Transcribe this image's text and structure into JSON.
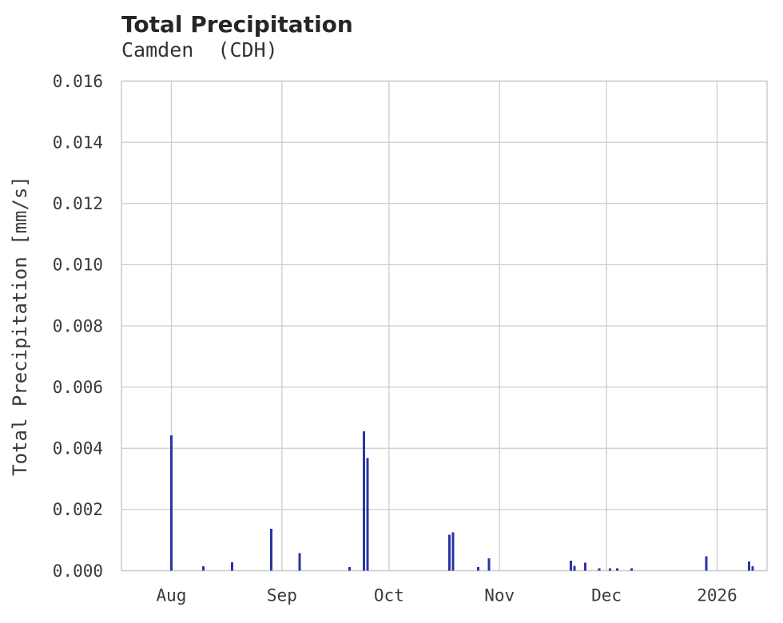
{
  "chart": {
    "title": "Total Precipitation",
    "subtitle": "Camden  (CDH)",
    "ylabel": "Total Precipitation [mm/s]"
  },
  "chart_data": {
    "type": "bar",
    "title": "Total Precipitation",
    "subtitle": "Camden  (CDH)",
    "xlabel": "",
    "ylabel": "Total Precipitation [mm/s]",
    "ylim": [
      0,
      0.016
    ],
    "ytick_step": 0.002,
    "ytick_labels": [
      "0.000",
      "0.002",
      "0.004",
      "0.006",
      "0.008",
      "0.010",
      "0.012",
      "0.014",
      "0.016"
    ],
    "grid": true,
    "legend_position": "none",
    "x_domain": [
      "2025-07-18",
      "2026-01-15"
    ],
    "x_ticks": [
      {
        "date": "2025-08-01",
        "label": "Aug"
      },
      {
        "date": "2025-09-01",
        "label": "Sep"
      },
      {
        "date": "2025-10-01",
        "label": "Oct"
      },
      {
        "date": "2025-11-01",
        "label": "Nov"
      },
      {
        "date": "2025-12-01",
        "label": "Dec"
      },
      {
        "date": "2026-01-01",
        "label": "2026"
      }
    ],
    "points": [
      {
        "date": "2025-08-01",
        "value": 0.00443
      },
      {
        "date": "2025-08-10",
        "value": 0.00014
      },
      {
        "date": "2025-08-18",
        "value": 0.00027
      },
      {
        "date": "2025-08-29",
        "value": 0.00137
      },
      {
        "date": "2025-09-06",
        "value": 0.00058
      },
      {
        "date": "2025-09-20",
        "value": 0.00012
      },
      {
        "date": "2025-09-24",
        "value": 0.00455
      },
      {
        "date": "2025-09-25",
        "value": 0.00368
      },
      {
        "date": "2025-10-18",
        "value": 0.00117
      },
      {
        "date": "2025-10-19",
        "value": 0.00125
      },
      {
        "date": "2025-10-26",
        "value": 0.00012
      },
      {
        "date": "2025-10-29",
        "value": 0.0004
      },
      {
        "date": "2025-11-21",
        "value": 0.00032
      },
      {
        "date": "2025-11-22",
        "value": 0.00016
      },
      {
        "date": "2025-11-25",
        "value": 0.00026
      },
      {
        "date": "2025-11-29",
        "value": 8e-05
      },
      {
        "date": "2025-12-02",
        "value": 8e-05
      },
      {
        "date": "2025-12-04",
        "value": 8e-05
      },
      {
        "date": "2025-12-08",
        "value": 8e-05
      },
      {
        "date": "2025-12-29",
        "value": 0.00047
      },
      {
        "date": "2026-01-10",
        "value": 0.0003
      },
      {
        "date": "2026-01-11",
        "value": 0.00015
      }
    ],
    "colors": {
      "bar": "#2b35a5",
      "grid": "#cccccc",
      "tick_text": "#3a3a3a",
      "title_text": "#262626",
      "background": "#ffffff"
    }
  }
}
